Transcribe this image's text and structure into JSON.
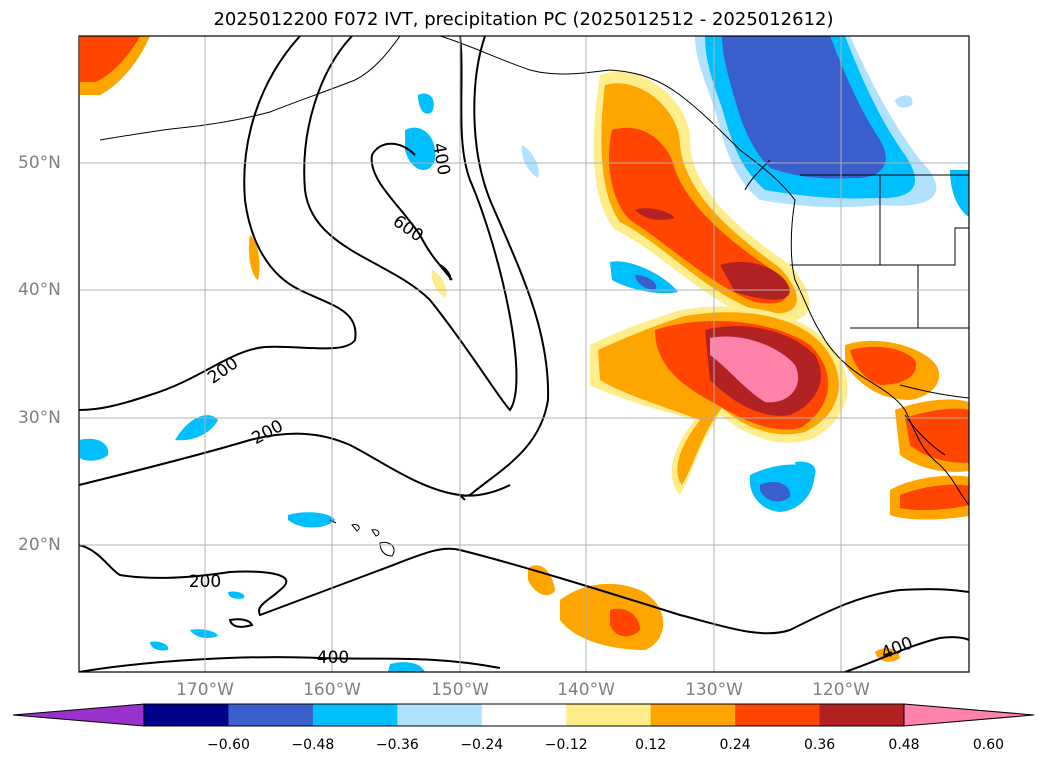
{
  "title": "2025012200 F072 IVT, precipitation PC (2025012512 - 2025012612)",
  "lat_labels": [
    "50°N",
    "40°N",
    "30°N",
    "20°N"
  ],
  "lon_labels": [
    "170°W",
    "160°W",
    "150°W",
    "140°W",
    "130°W",
    "120°W"
  ],
  "contour_labels": [
    "400",
    "600",
    "200",
    "200",
    "200",
    "400",
    "400"
  ],
  "colorbar": {
    "ticks": [
      "−0.60",
      "−0.48",
      "−0.36",
      "−0.24",
      "−0.12",
      "0.12",
      "0.24",
      "0.36",
      "0.48",
      "0.60"
    ],
    "colors": [
      "#9932CC",
      "#00008B",
      "#3A5FCD",
      "#00BFFF",
      "#B0E2FF",
      "#FFFFFF",
      "#FFEC8B",
      "#FFA500",
      "#FF4500",
      "#B22222",
      "#FF82AB"
    ]
  }
}
